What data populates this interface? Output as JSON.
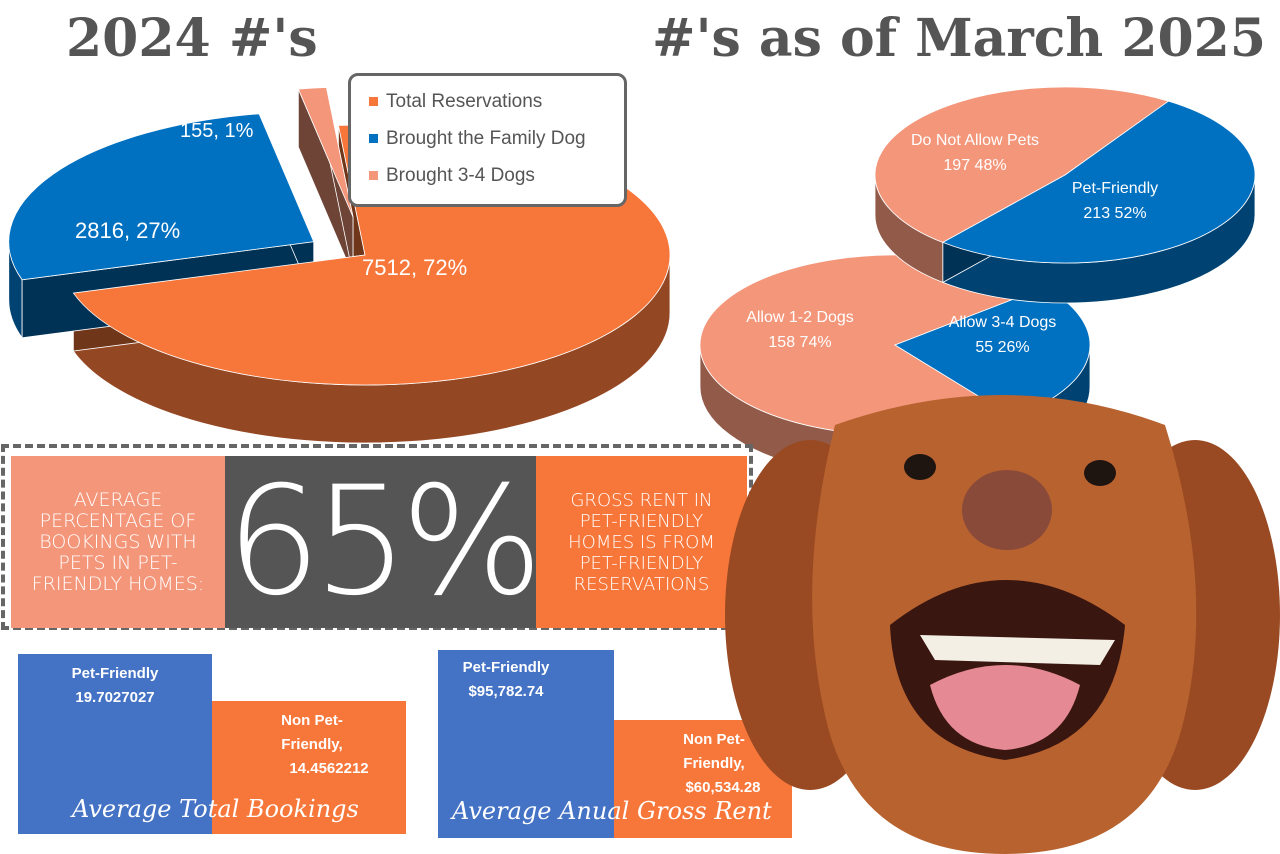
{
  "titles": {
    "left": "2024 #'s",
    "right": "#'s as of March 2025"
  },
  "colors": {
    "orange": "#f7773a",
    "blue": "#0070c0",
    "salmon": "#f4967a",
    "dark_gray": "#555555",
    "bar_blue": "#4472c4"
  },
  "chart_data": [
    {
      "type": "pie",
      "title": "",
      "legend_position": "inside-top",
      "legend": [
        "Total Reservations",
        "Brought the Family Dog",
        "Brought 3-4 Dogs"
      ],
      "slices": [
        {
          "name": "Total Reservations",
          "value": 7512,
          "percent": 72,
          "label": "7512, 72%",
          "color": "#f7773a"
        },
        {
          "name": "Brought the Family Dog",
          "value": 2816,
          "percent": 27,
          "label": "2816, 27%",
          "color": "#0070c0"
        },
        {
          "name": "Brought 3-4 Dogs",
          "value": 155,
          "percent": 1,
          "label": "155, 1%",
          "color": "#f4967a"
        }
      ]
    },
    {
      "type": "pie",
      "title": "",
      "slices": [
        {
          "name": "Do Not Allow Pets",
          "value": 197,
          "percent": 48,
          "label": "197 48%",
          "color": "#f4967a"
        },
        {
          "name": "Pet-Friendly",
          "value": 213,
          "percent": 52,
          "label": "213 52%",
          "color": "#0070c0"
        }
      ]
    },
    {
      "type": "pie",
      "title": "",
      "slices": [
        {
          "name": "Allow 1-2 Dogs",
          "value": 158,
          "percent": 74,
          "label": "158 74%",
          "color": "#f4967a"
        },
        {
          "name": "Allow 3-4 Dogs",
          "value": 55,
          "percent": 26,
          "label": "55 26%",
          "color": "#0070c0"
        }
      ]
    },
    {
      "type": "bar",
      "title": "Average Total Bookings",
      "categories": [
        "Pet-Friendly",
        "Non Pet-Friendly,"
      ],
      "values": [
        19.7027027,
        14.4562212
      ],
      "labels": [
        "19.7027027",
        "14.4562212"
      ]
    },
    {
      "type": "bar",
      "title": "Average Anual Gross Rent",
      "categories": [
        "Pet-Friendly",
        "Non Pet-Friendly,"
      ],
      "values": [
        95782.74,
        60534.28
      ],
      "labels": [
        "$95,782.74",
        "$60,534.28"
      ]
    }
  ],
  "banner": {
    "left_text": "AVERAGE PERCENTAGE OF BOOKINGS WITH PETS IN PET-FRIENDLY HOMES:",
    "big_value": "65%",
    "right_text": "GROSS RENT IN PET-FRIENDLY HOMES IS FROM PET-FRIENDLY RESERVATIONS"
  }
}
